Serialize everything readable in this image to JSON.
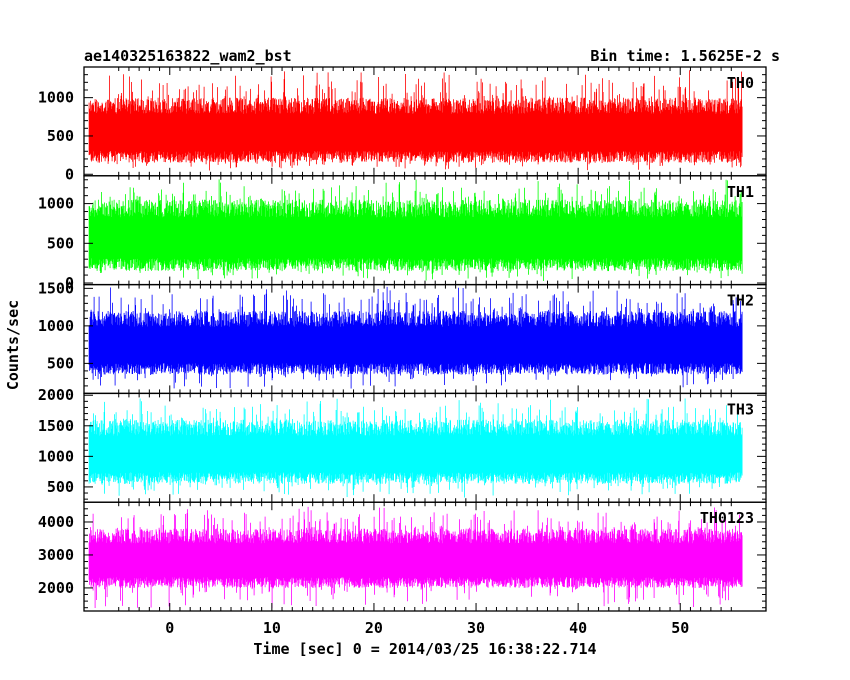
{
  "header": {
    "title": "ae140325163822_wam2_bst",
    "bin_time": "Bin time: 1.5625E-2 s"
  },
  "chart_data": {
    "type": "line",
    "xlabel": "Time [sec] 0 = 2014/03/25 16:38:22.714",
    "ylabel": "Counts/sec",
    "xlim": [
      -8.4,
      58.4
    ],
    "x_data_range": [
      -7.9,
      56.1
    ],
    "xticks": [
      0,
      10,
      20,
      30,
      40,
      50
    ],
    "xtick_labels": [
      "0",
      "10",
      "20",
      "30",
      "40",
      "50"
    ],
    "panels": [
      {
        "name": "TH0",
        "color": "#ff0000",
        "ylim": [
          -20,
          1400
        ],
        "yticks": [
          0,
          500,
          1000
        ],
        "ytick_labels": [
          "0",
          "500",
          "1000"
        ],
        "typical_range": [
          150,
          1000
        ],
        "min": 30,
        "max": 1400
      },
      {
        "name": "TH1",
        "color": "#00ff00",
        "ylim": [
          -20,
          1350
        ],
        "yticks": [
          0,
          500,
          1000
        ],
        "ytick_labels": [
          "0",
          "500",
          "1000"
        ],
        "typical_range": [
          150,
          1050
        ],
        "min": 20,
        "max": 1330
      },
      {
        "name": "TH2",
        "color": "#0000ff",
        "ylim": [
          100,
          1550
        ],
        "yticks": [
          500,
          1000,
          1500
        ],
        "ytick_labels": [
          "500",
          "1000",
          "1500"
        ],
        "typical_range": [
          350,
          1200
        ],
        "min": 150,
        "max": 1540
      },
      {
        "name": "TH3",
        "color": "#00ffff",
        "ylim": [
          250,
          2030
        ],
        "yticks": [
          500,
          1000,
          1500,
          2000
        ],
        "ytick_labels": [
          "500",
          "1000",
          "1500",
          "2000"
        ],
        "typical_range": [
          550,
          1600
        ],
        "min": 320,
        "max": 1980
      },
      {
        "name": "TH0123",
        "color": "#ff00ff",
        "ylim": [
          1300,
          4600
        ],
        "yticks": [
          2000,
          3000,
          4000
        ],
        "ytick_labels": [
          "2000",
          "3000",
          "4000"
        ],
        "typical_range": [
          2000,
          3800
        ],
        "min": 1350,
        "max": 4500
      }
    ]
  }
}
